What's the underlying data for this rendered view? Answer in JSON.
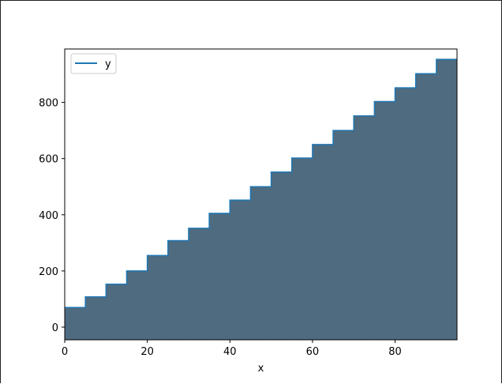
{
  "chart_data": {
    "type": "area",
    "step": "post",
    "xlabel": "x",
    "ylabel": "",
    "xlim": [
      0,
      95
    ],
    "ylim": [
      -45,
      990
    ],
    "xticks": [
      0,
      20,
      40,
      60,
      80
    ],
    "yticks": [
      0,
      200,
      400,
      600,
      800
    ],
    "legend_position": "top-left",
    "grid": false,
    "series": [
      {
        "name": "y",
        "line_color": "#1f77b4",
        "fill_color": "#4f6b80",
        "x": [
          0,
          5,
          10,
          15,
          20,
          25,
          30,
          35,
          40,
          45,
          50,
          55,
          60,
          65,
          70,
          75,
          80,
          85,
          90
        ],
        "y": [
          70,
          108,
          153,
          200,
          255,
          308,
          352,
          405,
          452,
          500,
          552,
          602,
          650,
          700,
          752,
          803,
          852,
          902,
          953
        ]
      }
    ]
  }
}
